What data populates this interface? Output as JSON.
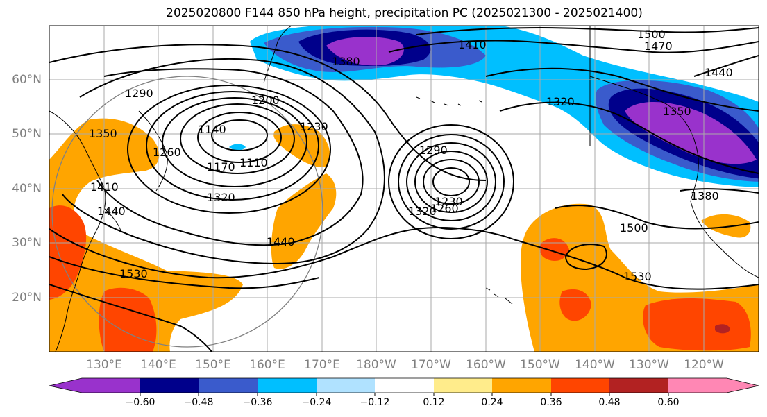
{
  "title": "2025020800 F144 850 hPa height, precipitation PC (2025021300 - 2025021400)",
  "lat_labels": [
    "60°N",
    "50°N",
    "40°N",
    "30°N",
    "20°N"
  ],
  "lon_labels": [
    "130°E",
    "140°E",
    "150°E",
    "160°E",
    "170°E",
    "180°W",
    "170°W",
    "160°W",
    "150°W",
    "140°W",
    "130°W",
    "120°W"
  ],
  "colorbar": {
    "colors": [
      "#9932CC",
      "#00008B",
      "#3A5BCC",
      "#00BFFF",
      "#B0E2FF",
      "#FFFFFF",
      "#FFEC8B",
      "#FFA500",
      "#FF4500",
      "#B22222",
      "#FF87B4"
    ],
    "tick_labels": [
      "−0.60",
      "−0.48",
      "−0.36",
      "−0.24",
      "−0.12",
      "0.12",
      "0.24",
      "0.36",
      "0.48",
      "0.60"
    ]
  },
  "contour_labels": [
    "1500",
    "1470",
    "1440",
    "1410",
    "1380",
    "1290",
    "1200",
    "1230",
    "1140",
    "1260",
    "1110",
    "1170",
    "1350",
    "1410",
    "1440",
    "1320",
    "1530",
    "1440",
    "1290",
    "1230",
    "1260",
    "1320",
    "1320",
    "1350",
    "1380",
    "1500",
    "1530"
  ]
}
